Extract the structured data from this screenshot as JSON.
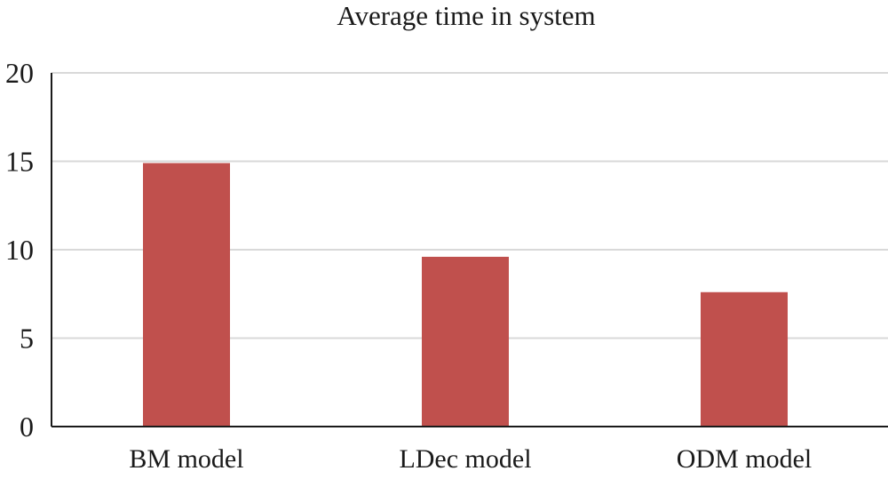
{
  "chart_data": {
    "type": "bar",
    "title": "Average time in system",
    "categories": [
      "BM model",
      "LDec model",
      "ODM model"
    ],
    "values": [
      14.9,
      9.6,
      7.6
    ],
    "ylim": [
      0,
      20
    ],
    "yticks": [
      0,
      5,
      10,
      15,
      20
    ],
    "xlabel": "",
    "ylabel": "",
    "grid": true,
    "legend": "none",
    "colors": {
      "bar": "#c0504d",
      "grid": "#d9d9d9",
      "axis": "#1a1a1a"
    }
  }
}
